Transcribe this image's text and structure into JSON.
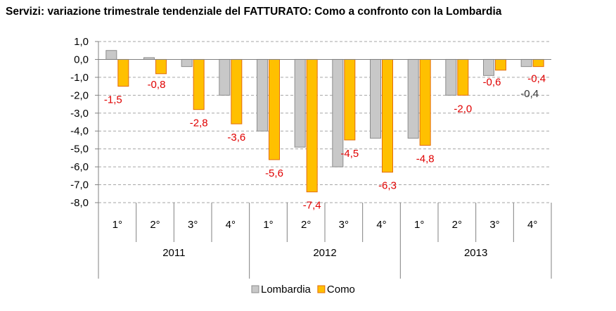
{
  "chart_data": {
    "type": "bar",
    "title": "Servizi: variazione trimestrale tendenziale del FATTURATO: Como a confronto con la Lombardia",
    "xlabel": "",
    "ylabel": "",
    "ylim": [
      -8.0,
      1.0
    ],
    "yticks": [
      "1,0",
      "0,0",
      "-1,0",
      "-2,0",
      "-3,0",
      "-4,0",
      "-5,0",
      "-6,0",
      "-7,0",
      "-8,0"
    ],
    "grid": true,
    "legend_position": "bottom",
    "categories": [
      "1°",
      "2°",
      "3°",
      "4°",
      "1°",
      "2°",
      "3°",
      "4°",
      "1°",
      "2°",
      "3°",
      "4°"
    ],
    "years": [
      {
        "label": "2011",
        "quarters": 4
      },
      {
        "label": "2012",
        "quarters": 4
      },
      {
        "label": "2013",
        "quarters": 4
      }
    ],
    "series": [
      {
        "name": "Lombardia",
        "color": "#c8c8c8",
        "stroke": "#8c8c8c",
        "values": [
          0.5,
          0.1,
          -0.4,
          -2.0,
          -4.0,
          -4.9,
          -6.0,
          -4.4,
          -4.4,
          -2.0,
          -0.9,
          -0.4
        ]
      },
      {
        "name": "Como",
        "color": "#ffc000",
        "stroke": "#e46c0a",
        "values": [
          -1.5,
          -0.8,
          -2.8,
          -3.6,
          -5.6,
          -7.4,
          -4.5,
          -6.3,
          -4.8,
          -2.0,
          -0.6,
          -0.4
        ]
      }
    ],
    "data_labels": [
      {
        "text": "-1,5",
        "category": 0,
        "series": "Como",
        "color": "#e00000"
      },
      {
        "text": "-0,8",
        "category": 1,
        "series": "Como",
        "color": "#e00000"
      },
      {
        "text": "-2,8",
        "category": 2,
        "series": "Como",
        "color": "#e00000"
      },
      {
        "text": "-3,6",
        "category": 3,
        "series": "Como",
        "color": "#e00000"
      },
      {
        "text": "-5,6",
        "category": 4,
        "series": "Como",
        "color": "#e00000"
      },
      {
        "text": "-7,4",
        "category": 5,
        "series": "Como",
        "color": "#e00000"
      },
      {
        "text": "-4,5",
        "category": 6,
        "series": "Como",
        "color": "#e00000"
      },
      {
        "text": "-6,3",
        "category": 7,
        "series": "Como",
        "color": "#e00000"
      },
      {
        "text": "-4,8",
        "category": 8,
        "series": "Como",
        "color": "#e00000"
      },
      {
        "text": "-2,0",
        "category": 9,
        "series": "Como",
        "color": "#e00000"
      },
      {
        "text": "-0,6",
        "category": 10,
        "series": "Como",
        "color": "#e00000"
      },
      {
        "text": "-0,4",
        "category": 11,
        "series": "Como",
        "color": "#e00000"
      },
      {
        "text": "-0,4",
        "category": 11,
        "series": "Lombardia",
        "color": "#333333"
      }
    ]
  }
}
